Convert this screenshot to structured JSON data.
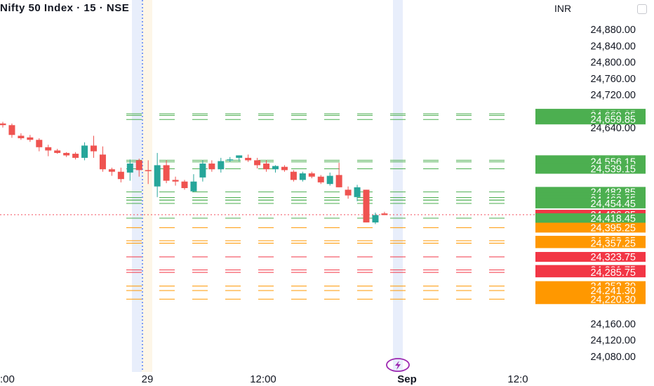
{
  "header": {
    "title": "Nifty 50 Index · 15 · NSE",
    "currency": "INR"
  },
  "colors": {
    "up": "#26a69a",
    "down": "#ef5350",
    "resistance": "#4caf50",
    "mid": "#f23645",
    "support": "#ff9800",
    "label_text": "#ffffff",
    "axis_text": "#131722",
    "highlight": "#e8eefb",
    "highlight_warm": "#fdf6e8",
    "event_icon": "#9c27b0"
  },
  "icons": {
    "settings": "gear-icon",
    "event": "lightning-icon"
  },
  "chart_data": {
    "type": "candlestick",
    "title": "Nifty 50 Index · 15 · NSE",
    "y_axis": {
      "unit": "INR",
      "range": [
        24060,
        24900
      ],
      "ticks": [
        "24,880.00",
        "24,840.00",
        "24,800.00",
        "24,760.00",
        "24,720.00",
        "24,640.00",
        "24,160.00",
        "24,120.00",
        "24,080.00"
      ]
    },
    "x_axis": {
      "labels": [
        ":00",
        "29",
        "12:00",
        "Sep",
        "12:0"
      ]
    },
    "candles": [
      {
        "o": 24650,
        "h": 24654,
        "l": 24640,
        "c": 24646
      },
      {
        "o": 24646,
        "h": 24650,
        "l": 24615,
        "c": 24622
      },
      {
        "o": 24620,
        "h": 24626,
        "l": 24610,
        "c": 24614
      },
      {
        "o": 24616,
        "h": 24622,
        "l": 24605,
        "c": 24610
      },
      {
        "o": 24610,
        "h": 24614,
        "l": 24582,
        "c": 24592
      },
      {
        "o": 24592,
        "h": 24598,
        "l": 24570,
        "c": 24584
      },
      {
        "o": 24584,
        "h": 24588,
        "l": 24576,
        "c": 24578
      },
      {
        "o": 24578,
        "h": 24580,
        "l": 24568,
        "c": 24572
      },
      {
        "o": 24576,
        "h": 24580,
        "l": 24562,
        "c": 24566
      },
      {
        "o": 24566,
        "h": 24604,
        "l": 24560,
        "c": 24596
      },
      {
        "o": 24596,
        "h": 24620,
        "l": 24566,
        "c": 24582
      },
      {
        "o": 24574,
        "h": 24594,
        "l": 24532,
        "c": 24538
      },
      {
        "o": 24538,
        "h": 24542,
        "l": 24522,
        "c": 24532
      },
      {
        "o": 24532,
        "h": 24542,
        "l": 24506,
        "c": 24514
      },
      {
        "o": 24530,
        "h": 24562,
        "l": 24510,
        "c": 24552
      },
      {
        "o": 24560,
        "h": 24564,
        "l": 24520,
        "c": 24536
      },
      {
        "o": 24536,
        "h": 24560,
        "l": 24502,
        "c": 24534
      },
      {
        "o": 24496,
        "h": 24578,
        "l": 24470,
        "c": 24548
      },
      {
        "o": 24548,
        "h": 24560,
        "l": 24504,
        "c": 24510
      },
      {
        "o": 24512,
        "h": 24520,
        "l": 24498,
        "c": 24508
      },
      {
        "o": 24508,
        "h": 24512,
        "l": 24488,
        "c": 24492
      },
      {
        "o": 24484,
        "h": 24526,
        "l": 24482,
        "c": 24508
      },
      {
        "o": 24518,
        "h": 24560,
        "l": 24508,
        "c": 24552
      },
      {
        "o": 24552,
        "h": 24560,
        "l": 24532,
        "c": 24538
      },
      {
        "o": 24538,
        "h": 24566,
        "l": 24530,
        "c": 24558
      },
      {
        "o": 24560,
        "h": 24568,
        "l": 24556,
        "c": 24562
      },
      {
        "o": 24566,
        "h": 24572,
        "l": 24558,
        "c": 24572
      },
      {
        "o": 24566,
        "h": 24574,
        "l": 24556,
        "c": 24560
      },
      {
        "o": 24560,
        "h": 24566,
        "l": 24540,
        "c": 24548
      },
      {
        "o": 24552,
        "h": 24560,
        "l": 24532,
        "c": 24538
      },
      {
        "o": 24538,
        "h": 24548,
        "l": 24530,
        "c": 24546
      },
      {
        "o": 24544,
        "h": 24548,
        "l": 24532,
        "c": 24536
      },
      {
        "o": 24532,
        "h": 24536,
        "l": 24508,
        "c": 24512
      },
      {
        "o": 24512,
        "h": 24532,
        "l": 24508,
        "c": 24528
      },
      {
        "o": 24528,
        "h": 24532,
        "l": 24516,
        "c": 24520
      },
      {
        "o": 24520,
        "h": 24524,
        "l": 24502,
        "c": 24506
      },
      {
        "o": 24502,
        "h": 24530,
        "l": 24498,
        "c": 24522
      },
      {
        "o": 24524,
        "h": 24554,
        "l": 24494,
        "c": 24494
      },
      {
        "o": 24488,
        "h": 24496,
        "l": 24466,
        "c": 24474
      },
      {
        "o": 24470,
        "h": 24500,
        "l": 24460,
        "c": 24494
      },
      {
        "o": 24488,
        "h": 24488,
        "l": 24408,
        "c": 24408
      },
      {
        "o": 24408,
        "h": 24432,
        "l": 24404,
        "c": 24426
      },
      {
        "o": 24430,
        "h": 24434,
        "l": 24426,
        "c": 24426
      }
    ],
    "levels": [
      {
        "label": "24,673.85",
        "value": 24673.85,
        "group": "resistance"
      },
      {
        "label": "24,669.85",
        "value": 24669.85,
        "group": "resistance"
      },
      {
        "label": "24,659.85",
        "value": 24659.85,
        "group": "resistance"
      },
      {
        "label": "24,560.15",
        "value": 24560.15,
        "group": "resistance"
      },
      {
        "label": "24,556.15",
        "value": 24556.15,
        "group": "resistance"
      },
      {
        "label": "24,539.15",
        "value": 24539.15,
        "group": "resistance"
      },
      {
        "label": "24,482.85",
        "value": 24482.85,
        "group": "resistance"
      },
      {
        "label": "24,468.85",
        "value": 24468.85,
        "group": "resistance"
      },
      {
        "label": "24,462.85",
        "value": 24462.85,
        "group": "resistance"
      },
      {
        "label": "24,462.45",
        "value": 24462.45,
        "group": "resistance"
      },
      {
        "label": "24,454.45",
        "value": 24454.45,
        "group": "resistance"
      },
      {
        "label": "24,426.85",
        "value": 24426.85,
        "group": "current"
      },
      {
        "label": "24,418.45",
        "value": 24418.45,
        "group": "resistance"
      },
      {
        "label": "24,395.25",
        "value": 24395.25,
        "group": "support"
      },
      {
        "label": "24,363.25",
        "value": 24363.25,
        "group": "support"
      },
      {
        "label": "24,357.25",
        "value": 24357.25,
        "group": "support"
      },
      {
        "label": "24,323.75",
        "value": 24323.75,
        "group": "mid"
      },
      {
        "label": "24,291.75",
        "value": 24291.75,
        "group": "mid"
      },
      {
        "label": "24,285.75",
        "value": 24285.75,
        "group": "mid"
      },
      {
        "label": "24,252.30",
        "value": 24252.3,
        "group": "support"
      },
      {
        "label": "24,241.30",
        "value": 24241.3,
        "group": "support"
      },
      {
        "label": "24,220.30",
        "value": 24220.3,
        "group": "support"
      }
    ]
  }
}
